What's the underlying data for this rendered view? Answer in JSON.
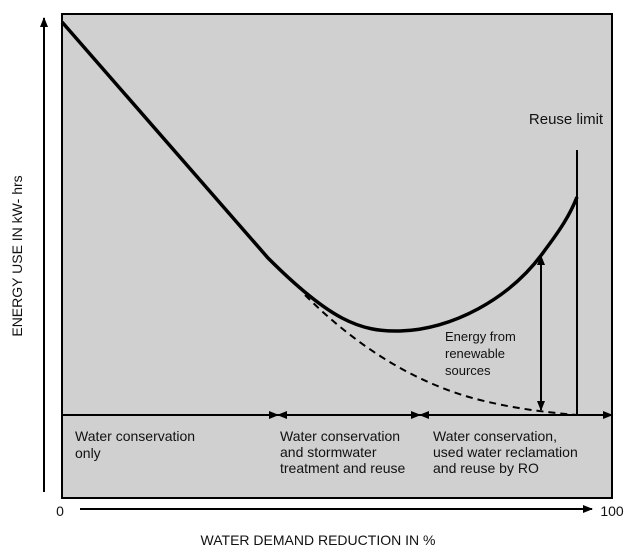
{
  "axes": {
    "y_label": "ENERGY USE IN kW-  hrs",
    "x_label": "WATER DEMAND REDUCTION IN %",
    "x_start": "0",
    "x_end": "100"
  },
  "annotations": {
    "reuse_limit": "Reuse limit",
    "renewable": [
      "Energy from",
      "renewable",
      "sources"
    ]
  },
  "phases": [
    {
      "lines": [
        "Water conservation",
        "only"
      ]
    },
    {
      "lines": [
        "Water conservation",
        "and stormwater",
        "treatment and reuse"
      ]
    },
    {
      "lines": [
        "Water conservation,",
        "used water reclamation",
        "and reuse by RO"
      ]
    }
  ]
}
